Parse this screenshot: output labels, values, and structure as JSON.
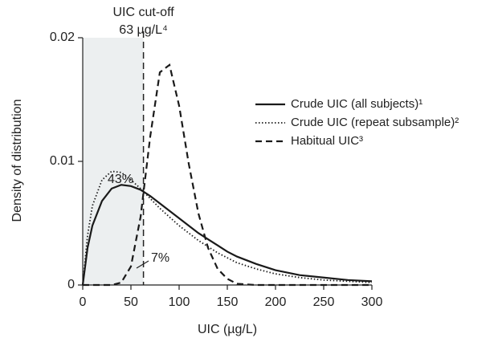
{
  "chart_data": {
    "type": "line",
    "x_label": "UIC (µg/L)",
    "y_label": "Density of distribution",
    "x": [
      0,
      5,
      10,
      20,
      30,
      40,
      50,
      60,
      70,
      80,
      90,
      100,
      110,
      120,
      130,
      140,
      150,
      160,
      180,
      200,
      225,
      250,
      275,
      300
    ],
    "series": [
      {
        "name": "Crude UIC (all subjects)¹",
        "color": "#1a1a1a",
        "style": "solid",
        "values": [
          0,
          0.003,
          0.0048,
          0.0068,
          0.0078,
          0.0081,
          0.008,
          0.0077,
          0.0072,
          0.0066,
          0.006,
          0.0054,
          0.0048,
          0.0042,
          0.0037,
          0.0032,
          0.0027,
          0.0023,
          0.0017,
          0.0012,
          0.0008,
          0.0006,
          0.0004,
          0.0003
        ]
      },
      {
        "name": "Crude UIC (repeat subsample)²",
        "color": "#1a1a1a",
        "style": "dotted",
        "values": [
          0,
          0.004,
          0.0064,
          0.0085,
          0.0092,
          0.0091,
          0.0085,
          0.0078,
          0.007,
          0.0062,
          0.0055,
          0.0048,
          0.0042,
          0.0036,
          0.0031,
          0.0026,
          0.0022,
          0.0018,
          0.0013,
          0.0009,
          0.0006,
          0.0004,
          0.0003,
          0.0002
        ]
      },
      {
        "name": "Habitual UIC³",
        "color": "#1a1a1a",
        "style": "dashed",
        "values": [
          0,
          0,
          0,
          0,
          0,
          0.0002,
          0.0015,
          0.0055,
          0.012,
          0.0172,
          0.0178,
          0.0145,
          0.0098,
          0.0058,
          0.003,
          0.0013,
          0.0005,
          0.0001,
          0,
          0,
          0,
          0,
          0,
          0
        ]
      }
    ],
    "cutoff": {
      "value": 63,
      "title": "UIC cut-off",
      "label": "63 µg/L⁴"
    },
    "annotations": [
      "43%",
      "7%"
    ],
    "xlim": [
      0,
      300
    ],
    "xticks": [
      0,
      50,
      100,
      150,
      200,
      250,
      300
    ],
    "ylim": [
      0,
      0.02
    ],
    "yticks": [
      0,
      0.01,
      0.02
    ],
    "shade_color": "#eceff0"
  }
}
